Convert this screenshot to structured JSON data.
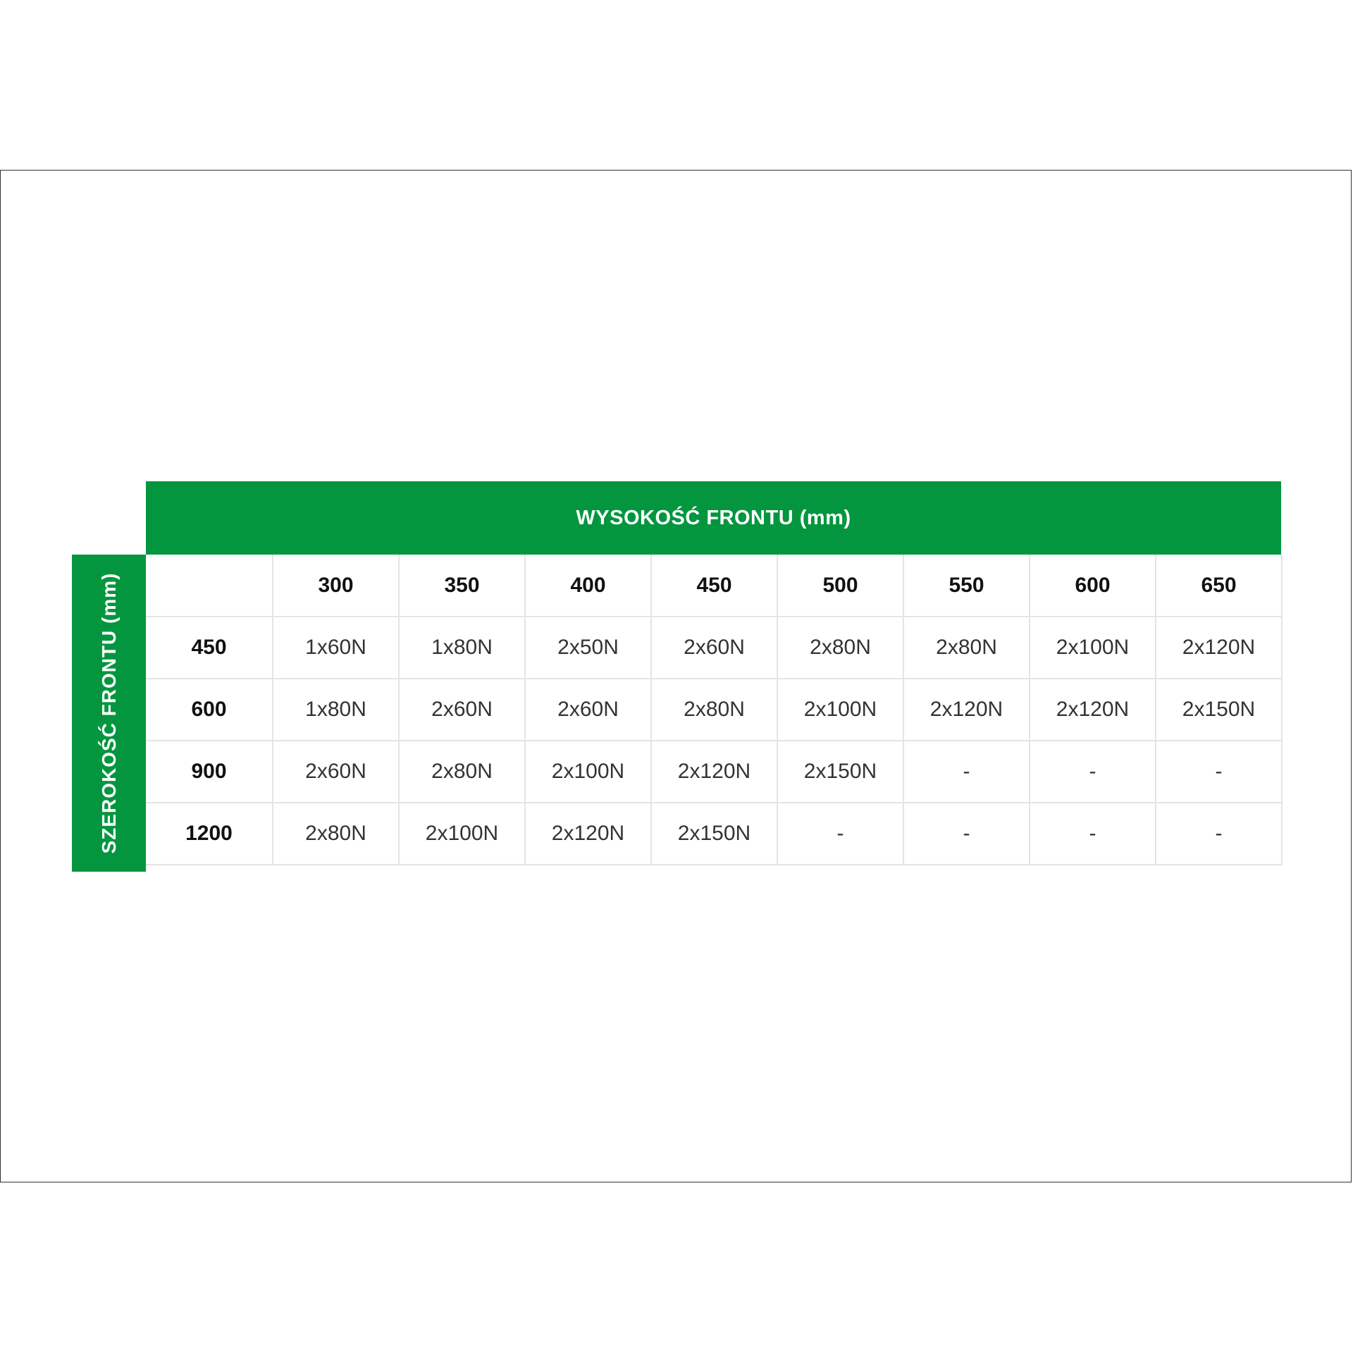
{
  "title_top": "WYSOKOŚĆ FRONTU (mm)",
  "title_side": "SZEROKOŚĆ FRONTU (mm)",
  "colors": {
    "green": "#03963f"
  },
  "table": {
    "corner": "",
    "columns": [
      "300",
      "350",
      "400",
      "450",
      "500",
      "550",
      "600",
      "650"
    ],
    "rows": [
      {
        "label": "450",
        "cells": [
          "1x60N",
          "1x80N",
          "2x50N",
          "2x60N",
          "2x80N",
          "2x80N",
          "2x100N",
          "2x120N"
        ]
      },
      {
        "label": "600",
        "cells": [
          "1x80N",
          "2x60N",
          "2x60N",
          "2x80N",
          "2x100N",
          "2x120N",
          "2x120N",
          "2x150N"
        ]
      },
      {
        "label": "900",
        "cells": [
          "2x60N",
          "2x80N",
          "2x100N",
          "2x120N",
          "2x150N",
          "-",
          "-",
          "-"
        ]
      },
      {
        "label": "1200",
        "cells": [
          "2x80N",
          "2x100N",
          "2x120N",
          "2x150N",
          "-",
          "-",
          "-",
          "-"
        ]
      }
    ]
  }
}
